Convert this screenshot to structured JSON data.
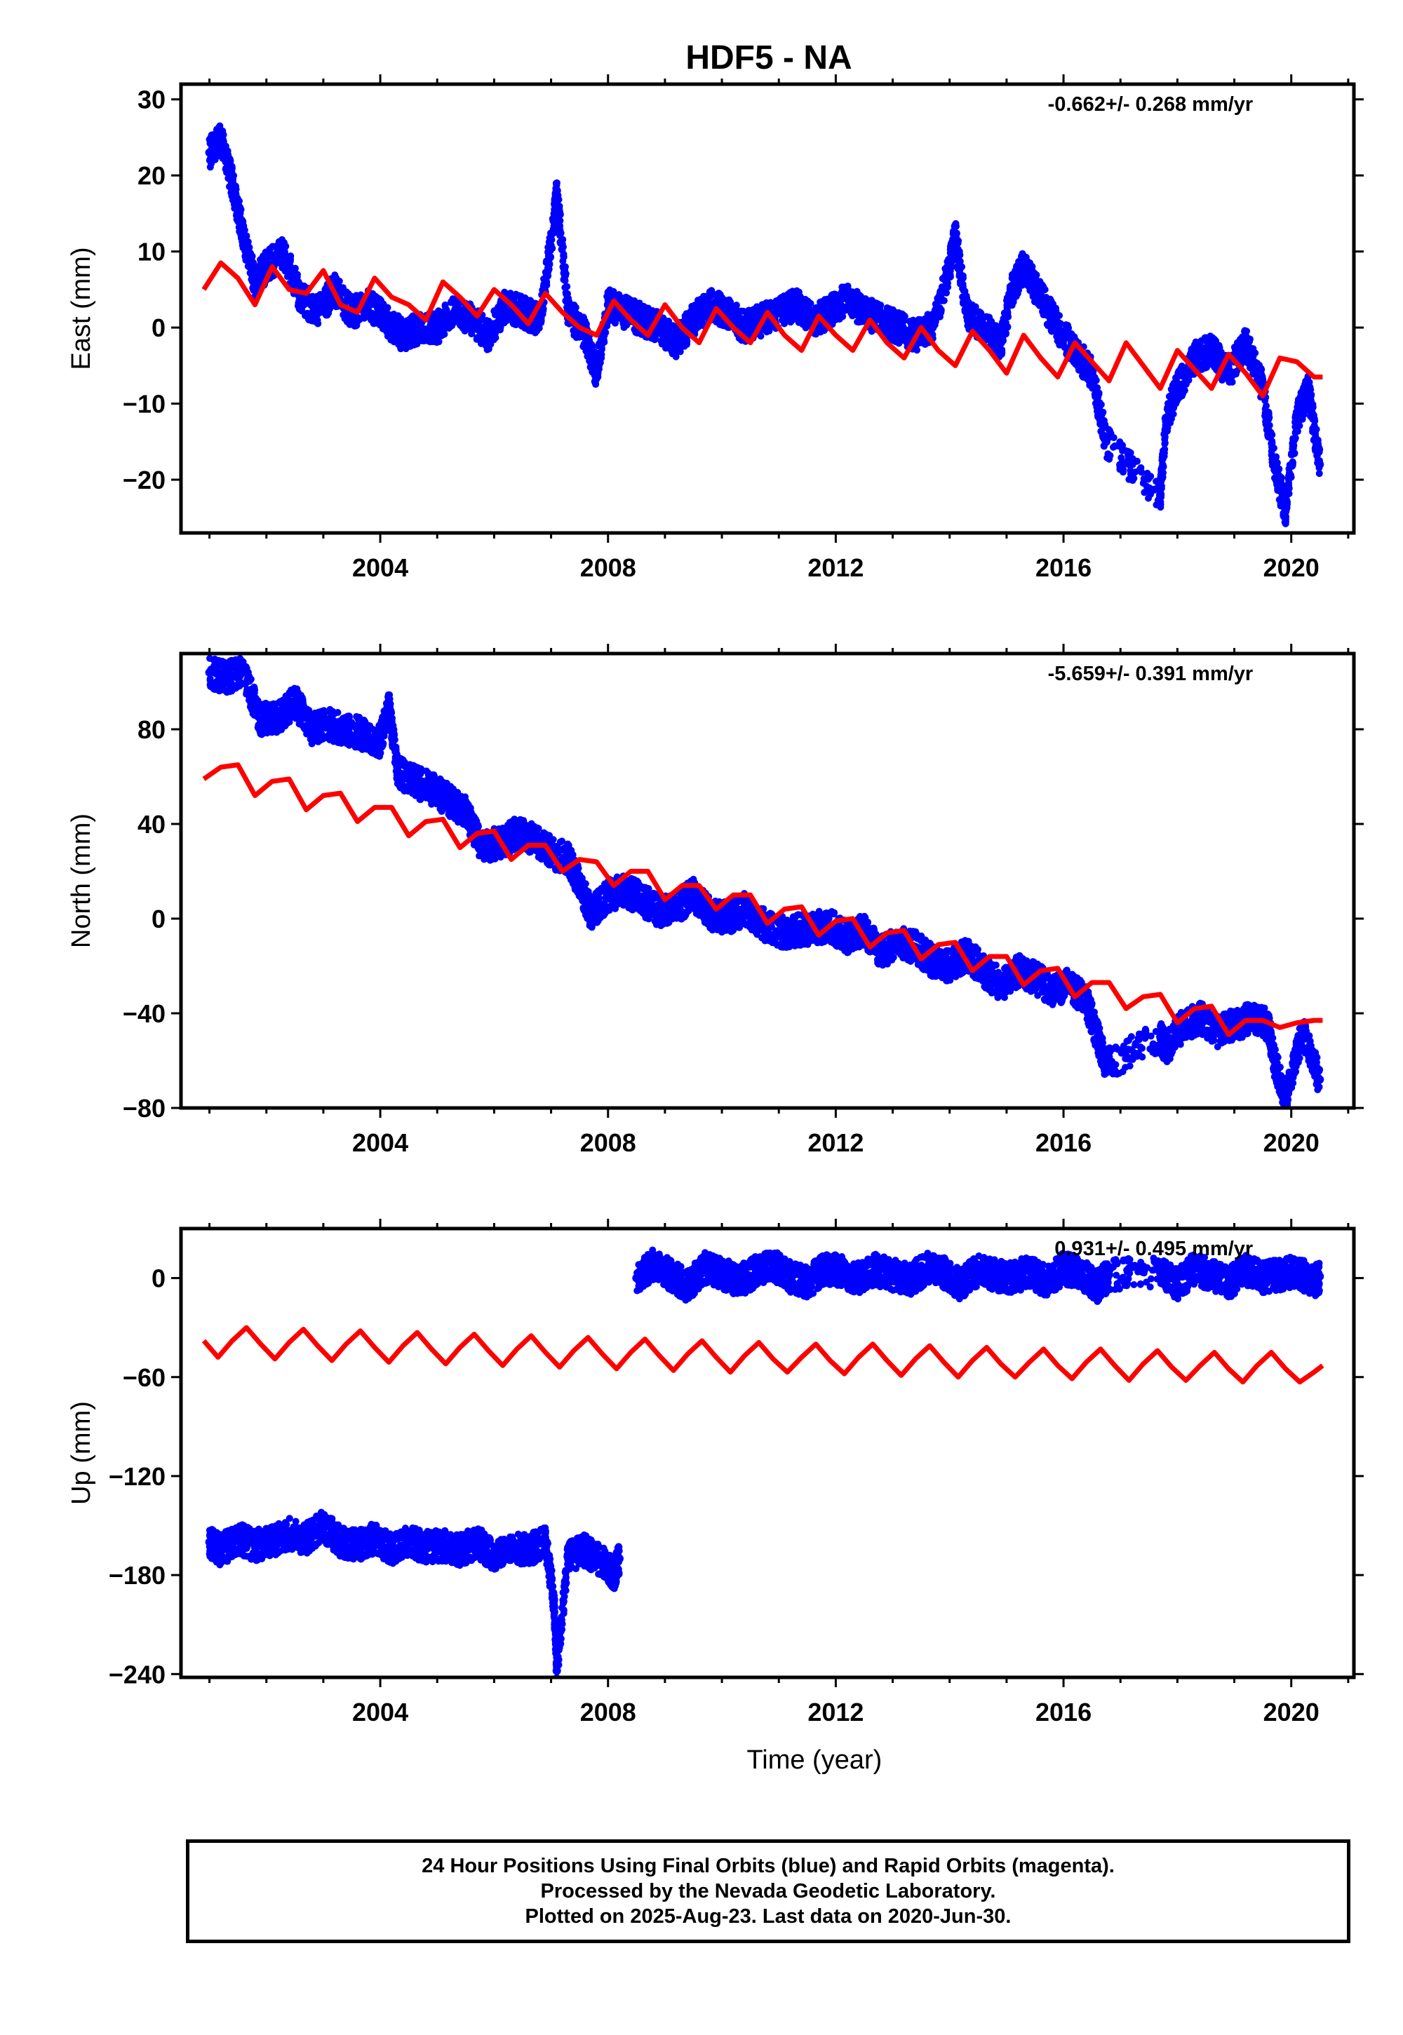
{
  "title": "HDF5 - NA",
  "colors": {
    "data": "#0000ff",
    "model": "#ff0000",
    "frame": "#000000"
  },
  "chart_data": [
    {
      "type": "scatter",
      "name": "east",
      "ylabel": "East (mm)",
      "xlabel": "",
      "rate_label": "-0.662+/- 0.268 mm/yr",
      "xlim": [
        2000.5,
        2021.1
      ],
      "ylim": [
        -27,
        32
      ],
      "xticks": [
        2004,
        2008,
        2012,
        2016,
        2020
      ],
      "xtick_labels": [
        "2004",
        "2008",
        "2012",
        "2016",
        "2020"
      ],
      "yticks": [
        30,
        20,
        10,
        0,
        -10,
        -20
      ],
      "ytick_labels": [
        "30",
        "20",
        "10",
        "0",
        "−10",
        "−20"
      ],
      "series": [
        {
          "role": "observations",
          "x": [
            2001.0,
            2001.2,
            2001.4,
            2001.6,
            2001.8,
            2002.0,
            2002.3,
            2002.6,
            2002.9,
            2003.2,
            2003.5,
            2003.8,
            2004.1,
            2004.4,
            2004.7,
            2005.0,
            2005.3,
            2005.6,
            2005.9,
            2006.2,
            2006.5,
            2006.8,
            2007.05,
            2007.1,
            2007.3,
            2007.6,
            2007.8,
            2008.0,
            2008.3,
            2008.6,
            2008.9,
            2009.2,
            2009.5,
            2009.8,
            2010.1,
            2010.4,
            2010.7,
            2011.0,
            2011.3,
            2011.6,
            2011.9,
            2012.2,
            2012.5,
            2012.8,
            2013.1,
            2013.4,
            2013.7,
            2014.0,
            2014.1,
            2014.3,
            2014.6,
            2014.9,
            2015.1,
            2015.3,
            2015.6,
            2015.9,
            2016.2,
            2016.5,
            2016.75,
            2017.7,
            2017.8,
            2018.0,
            2018.3,
            2018.6,
            2018.9,
            2019.2,
            2019.5,
            2019.7,
            2019.9,
            2020.1,
            2020.3,
            2020.5
          ],
          "y": [
            23,
            25,
            19,
            12,
            6,
            8,
            10,
            4,
            2,
            5,
            2,
            3,
            1,
            -1,
            0,
            0,
            2,
            1,
            -1,
            3,
            2,
            1,
            14,
            18,
            2,
            -1,
            -6,
            3,
            2,
            1,
            0,
            -2,
            1,
            3,
            2,
            0,
            1,
            2,
            3,
            1,
            2,
            4,
            2,
            1,
            0,
            -1,
            0,
            8,
            12,
            2,
            0,
            -2,
            5,
            8,
            4,
            0,
            -3,
            -6,
            -15,
            -22,
            -12,
            -8,
            -4,
            -3,
            -6,
            -2,
            -8,
            -18,
            -24,
            -12,
            -8,
            -18
          ]
        },
        {
          "role": "model",
          "x": [
            2000.9,
            2001.2,
            2001.5,
            2001.8,
            2002.1,
            2002.4,
            2002.7,
            2003.0,
            2003.3,
            2003.6,
            2003.9,
            2004.2,
            2004.5,
            2004.8,
            2005.1,
            2005.4,
            2005.7,
            2006.0,
            2006.3,
            2006.6,
            2006.9,
            2007.2,
            2007.5,
            2007.8,
            2008.1,
            2008.4,
            2008.7,
            2009.0,
            2009.3,
            2009.6,
            2009.9,
            2010.2,
            2010.5,
            2010.8,
            2011.1,
            2011.4,
            2011.7,
            2012.0,
            2012.3,
            2012.6,
            2012.9,
            2013.2,
            2013.5,
            2013.8,
            2014.1,
            2014.4,
            2014.7,
            2015.0,
            2015.3,
            2015.6,
            2015.9,
            2016.2,
            2016.5,
            2016.8,
            2017.1,
            2017.4,
            2017.7,
            2018.0,
            2018.3,
            2018.6,
            2018.9,
            2019.2,
            2019.5,
            2019.8,
            2020.1,
            2020.4,
            2020.55
          ],
          "y": [
            5,
            8.5,
            6.5,
            3,
            8,
            5,
            4.5,
            7.5,
            3,
            2,
            6.5,
            4,
            3,
            1,
            6,
            4,
            1.5,
            5,
            3,
            0.5,
            4.5,
            2,
            0,
            -1,
            3.5,
            1,
            -1,
            3,
            0,
            -2,
            2.5,
            0,
            -2,
            2,
            -1,
            -3,
            1.5,
            -1,
            -3,
            1,
            -2,
            -4,
            0,
            -3,
            -5,
            -0.5,
            -3,
            -6,
            -1,
            -4,
            -6.5,
            -2,
            -4.5,
            -7,
            -2,
            -5,
            -8,
            -3,
            -5.5,
            -8,
            -3.5,
            -6,
            -9,
            -4,
            -4.5,
            -6.5,
            -6.5
          ]
        }
      ]
    },
    {
      "type": "scatter",
      "name": "north",
      "ylabel": "North (mm)",
      "xlabel": "",
      "rate_label": "-5.659+/- 0.391 mm/yr",
      "xlim": [
        2000.5,
        2021.1
      ],
      "ylim": [
        -80,
        112
      ],
      "xticks": [
        2004,
        2008,
        2012,
        2016,
        2020
      ],
      "xtick_labels": [
        "2004",
        "2008",
        "2012",
        "2016",
        "2020"
      ],
      "yticks": [
        80,
        40,
        0,
        -40,
        -80
      ],
      "ytick_labels": [
        "80",
        "40",
        "0",
        "−40",
        "−80"
      ],
      "series": [
        {
          "role": "observations",
          "x": [
            2001.0,
            2001.3,
            2001.6,
            2001.9,
            2002.2,
            2002.5,
            2002.8,
            2003.1,
            2003.4,
            2003.7,
            2004.0,
            2004.15,
            2004.3,
            2004.6,
            2004.9,
            2005.2,
            2005.5,
            2005.8,
            2006.1,
            2006.4,
            2006.7,
            2007.0,
            2007.3,
            2007.5,
            2007.7,
            2008.0,
            2008.3,
            2008.6,
            2008.9,
            2009.2,
            2009.5,
            2009.8,
            2010.1,
            2010.4,
            2010.7,
            2011.0,
            2011.3,
            2011.6,
            2011.9,
            2012.2,
            2012.5,
            2012.8,
            2013.1,
            2013.4,
            2013.7,
            2014.0,
            2014.3,
            2014.6,
            2014.9,
            2015.2,
            2015.5,
            2015.8,
            2016.1,
            2016.4,
            2016.6,
            2016.75,
            2017.7,
            2017.8,
            2018.1,
            2018.4,
            2018.7,
            2019.0,
            2019.3,
            2019.6,
            2019.7,
            2019.9,
            2020.2,
            2020.5
          ],
          "y": [
            104,
            102,
            104,
            84,
            85,
            92,
            80,
            82,
            80,
            78,
            75,
            90,
            62,
            58,
            55,
            50,
            45,
            30,
            32,
            36,
            34,
            28,
            25,
            15,
            2,
            10,
            12,
            8,
            3,
            5,
            10,
            2,
            0,
            4,
            -2,
            -6,
            -5,
            -4,
            -3,
            -8,
            -5,
            -14,
            -10,
            -12,
            -18,
            -20,
            -15,
            -22,
            -28,
            -22,
            -25,
            -30,
            -28,
            -35,
            -50,
            -62,
            -50,
            -55,
            -45,
            -42,
            -48,
            -45,
            -42,
            -45,
            -60,
            -76,
            -48,
            -68
          ]
        },
        {
          "role": "model",
          "x": [
            2000.9,
            2001.2,
            2001.5,
            2001.8,
            2002.1,
            2002.4,
            2002.7,
            2003.0,
            2003.3,
            2003.6,
            2003.9,
            2004.2,
            2004.5,
            2004.8,
            2005.1,
            2005.4,
            2005.7,
            2006.0,
            2006.3,
            2006.6,
            2006.9,
            2007.2,
            2007.5,
            2007.8,
            2008.1,
            2008.4,
            2008.7,
            2009.0,
            2009.3,
            2009.6,
            2009.9,
            2010.2,
            2010.5,
            2010.8,
            2011.1,
            2011.4,
            2011.7,
            2012.0,
            2012.3,
            2012.6,
            2012.9,
            2013.2,
            2013.5,
            2013.8,
            2014.1,
            2014.4,
            2014.7,
            2015.0,
            2015.3,
            2015.6,
            2015.9,
            2016.2,
            2016.5,
            2016.8,
            2017.1,
            2017.4,
            2017.7,
            2018.0,
            2018.3,
            2018.6,
            2018.9,
            2019.2,
            2019.5,
            2019.8,
            2020.1,
            2020.4,
            2020.55
          ],
          "y": [
            59,
            64,
            65,
            52,
            58,
            59,
            46,
            52,
            53,
            41,
            47,
            47,
            35,
            41,
            42,
            30,
            36,
            37,
            25,
            31,
            31,
            20,
            25,
            24,
            14,
            20,
            20,
            8,
            14,
            14,
            4,
            10,
            10,
            -2,
            4,
            5,
            -7,
            -1,
            0,
            -12,
            -6,
            -5,
            -17,
            -11,
            -10,
            -22,
            -16,
            -16,
            -28,
            -22,
            -21,
            -33,
            -27,
            -27,
            -38,
            -33,
            -32,
            -44,
            -38,
            -37,
            -49,
            -43,
            -43,
            -46,
            -44,
            -43,
            -43
          ]
        }
      ]
    },
    {
      "type": "scatter",
      "name": "up",
      "ylabel": "Up (mm)",
      "xlabel": "Time (year)",
      "rate_label": "0.931+/- 0.495 mm/yr",
      "xlim": [
        2000.5,
        2021.1
      ],
      "ylim": [
        -242,
        30
      ],
      "xticks": [
        2004,
        2008,
        2012,
        2016,
        2020
      ],
      "xtick_labels": [
        "2004",
        "2008",
        "2012",
        "2016",
        "2020"
      ],
      "yticks": [
        0,
        -60,
        -120,
        -180,
        -240
      ],
      "ytick_labels": [
        "0",
        "−60",
        "−120",
        "−180",
        "−240"
      ],
      "series": [
        {
          "role": "observations",
          "x": [
            2001.0,
            2001.2,
            2001.5,
            2001.8,
            2002.1,
            2002.4,
            2002.7,
            2003.0,
            2003.3,
            2003.6,
            2003.9,
            2004.2,
            2004.5,
            2004.8,
            2005.1,
            2005.4,
            2005.7,
            2006.0,
            2006.3,
            2006.6,
            2006.9,
            2007.05,
            2007.1,
            2007.3,
            2007.6,
            2007.9,
            2008.1,
            2008.2,
            2008.5,
            2008.8,
            2009.1,
            2009.4,
            2009.7,
            2010.0,
            2010.3,
            2010.6,
            2010.9,
            2011.2,
            2011.5,
            2011.8,
            2012.1,
            2012.4,
            2012.7,
            2013.0,
            2013.3,
            2013.6,
            2013.9,
            2014.2,
            2014.5,
            2014.8,
            2015.1,
            2015.4,
            2015.7,
            2016.0,
            2016.3,
            2016.6,
            2016.8,
            2017.7,
            2018.0,
            2018.3,
            2018.6,
            2018.9,
            2019.2,
            2019.5,
            2019.8,
            2020.1,
            2020.4,
            2020.5
          ],
          "y": [
            -160,
            -165,
            -158,
            -162,
            -160,
            -155,
            -158,
            -150,
            -160,
            -162,
            -158,
            -165,
            -160,
            -163,
            -162,
            -165,
            -160,
            -168,
            -163,
            -165,
            -160,
            -195,
            -238,
            -168,
            -165,
            -172,
            -180,
            -170,
            0,
            8,
            2,
            -5,
            6,
            3,
            -2,
            4,
            8,
            1,
            -3,
            6,
            4,
            0,
            5,
            2,
            -1,
            6,
            3,
            -4,
            5,
            2,
            0,
            4,
            -2,
            6,
            3,
            -5,
            2,
            3,
            -4,
            6,
            2,
            -3,
            5,
            0,
            2,
            4,
            -2,
            1
          ]
        },
        {
          "role": "model",
          "x": [
            2000.9,
            2001.15,
            2001.4,
            2001.65,
            2001.9,
            2002.15,
            2002.4,
            2002.65,
            2002.9,
            2003.15,
            2003.4,
            2003.65,
            2003.9,
            2004.15,
            2004.4,
            2004.65,
            2004.9,
            2005.15,
            2005.4,
            2005.65,
            2005.9,
            2006.15,
            2006.4,
            2006.65,
            2006.9,
            2007.15,
            2007.4,
            2007.65,
            2007.9,
            2008.15,
            2008.4,
            2008.65,
            2008.9,
            2009.15,
            2009.4,
            2009.65,
            2009.9,
            2010.15,
            2010.4,
            2010.65,
            2010.9,
            2011.15,
            2011.4,
            2011.65,
            2011.9,
            2012.15,
            2012.4,
            2012.65,
            2012.9,
            2013.15,
            2013.4,
            2013.65,
            2013.9,
            2014.15,
            2014.4,
            2014.65,
            2014.9,
            2015.15,
            2015.4,
            2015.65,
            2015.9,
            2016.15,
            2016.4,
            2016.65,
            2016.9,
            2017.15,
            2017.4,
            2017.65,
            2017.9,
            2018.15,
            2018.4,
            2018.65,
            2018.9,
            2019.15,
            2019.4,
            2019.65,
            2019.9,
            2020.15,
            2020.4,
            2020.55
          ],
          "y": [
            -38,
            -48,
            -38,
            -30,
            -40,
            -49,
            -39,
            -31,
            -41,
            -50,
            -40,
            -32,
            -42,
            -51,
            -41,
            -33,
            -43,
            -52,
            -42,
            -34,
            -44,
            -53,
            -43,
            -35,
            -45,
            -54,
            -44,
            -36,
            -46,
            -55,
            -45,
            -37,
            -47,
            -56,
            -46,
            -38,
            -48,
            -57,
            -47,
            -39,
            -49,
            -57,
            -48,
            -40,
            -50,
            -58,
            -48,
            -40,
            -50,
            -59,
            -49,
            -41,
            -51,
            -60,
            -50,
            -42,
            -52,
            -60,
            -51,
            -43,
            -53,
            -61,
            -51,
            -43,
            -53,
            -62,
            -52,
            -44,
            -54,
            -62,
            -53,
            -45,
            -55,
            -63,
            -53,
            -45,
            -55,
            -63,
            -57,
            -53
          ]
        }
      ]
    }
  ],
  "footer": {
    "line1": "24 Hour Positions Using Final Orbits (blue) and Rapid Orbits (magenta).",
    "line2": "Processed by the Nevada Geodetic Laboratory.",
    "line3": "Plotted on 2025-Aug-23. Last data on 2020-Jun-30."
  }
}
